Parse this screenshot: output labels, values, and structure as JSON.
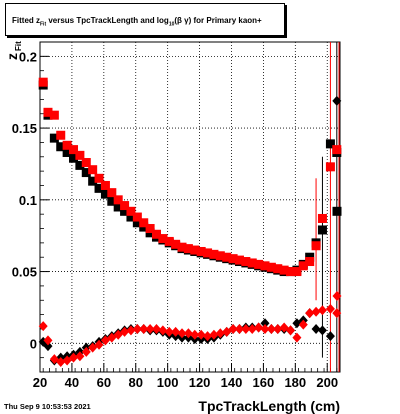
{
  "header": {
    "title": "Fitted  z",
    "title_sub": "Fit",
    "title_rest": "  versus TpcTrackLength and log",
    "title_sub2": "10",
    "title_tail": "(β  γ) for Primary kaon+"
  },
  "footer": {
    "timestamp": "Thu Sep  9 10:53:53 2021"
  },
  "chart_data": {
    "type": "scatter",
    "xlabel": "TpcTrackLength (cm)",
    "ylabel": "z",
    "ylabel_sub": "Fit",
    "xlim": [
      20,
      208
    ],
    "ylim": [
      -0.02,
      0.21
    ],
    "grid": true,
    "x_ticks": [
      20,
      40,
      60,
      80,
      100,
      120,
      140,
      160,
      180,
      200
    ],
    "y_ticks": [
      0,
      0.05,
      0.1,
      0.15,
      0.2
    ],
    "y_tick_labels": [
      "0",
      "0.05",
      "0.1",
      "0.15",
      "0.2"
    ],
    "series": [
      {
        "marker": "square",
        "color": "#000000",
        "points": [
          [
            22,
            0.18
          ],
          [
            25,
            0.159
          ],
          [
            29,
            0.143
          ],
          [
            33,
            0.137
          ],
          [
            37,
            0.133
          ],
          [
            41,
            0.129
          ],
          [
            45,
            0.124
          ],
          [
            49,
            0.119
          ],
          [
            53,
            0.113
          ],
          [
            57,
            0.108
          ],
          [
            61,
            0.104
          ],
          [
            65,
            0.099
          ],
          [
            69,
            0.095
          ],
          [
            73,
            0.092
          ],
          [
            77,
            0.088
          ],
          [
            81,
            0.084
          ],
          [
            85,
            0.081
          ],
          [
            89,
            0.077
          ],
          [
            93,
            0.074
          ],
          [
            97,
            0.072
          ],
          [
            101,
            0.07
          ],
          [
            105,
            0.068
          ],
          [
            109,
            0.066
          ],
          [
            113,
            0.065
          ],
          [
            117,
            0.064
          ],
          [
            121,
            0.063
          ],
          [
            125,
            0.062
          ],
          [
            129,
            0.061
          ],
          [
            133,
            0.06
          ],
          [
            137,
            0.059
          ],
          [
            141,
            0.058
          ],
          [
            145,
            0.057
          ],
          [
            149,
            0.056
          ],
          [
            153,
            0.055
          ],
          [
            157,
            0.054
          ],
          [
            161,
            0.053
          ],
          [
            165,
            0.052
          ],
          [
            169,
            0.051
          ],
          [
            173,
            0.05
          ],
          [
            177,
            0.05
          ],
          [
            181,
            0.051
          ],
          [
            185,
            0.055
          ],
          [
            189,
            0.06
          ],
          [
            193,
            0.07
          ],
          [
            197,
            0.079
          ],
          [
            202,
            0.139
          ],
          [
            206,
            0.133
          ],
          [
            209,
            0.092
          ]
        ]
      },
      {
        "marker": "square",
        "color": "#ff0000",
        "points": [
          [
            22,
            0.182
          ],
          [
            25,
            0.161
          ],
          [
            29,
            0.159
          ],
          [
            33,
            0.145
          ],
          [
            37,
            0.138
          ],
          [
            41,
            0.135
          ],
          [
            45,
            0.131
          ],
          [
            49,
            0.126
          ],
          [
            53,
            0.121
          ],
          [
            57,
            0.115
          ],
          [
            61,
            0.11
          ],
          [
            65,
            0.105
          ],
          [
            69,
            0.1
          ],
          [
            73,
            0.096
          ],
          [
            77,
            0.092
          ],
          [
            81,
            0.088
          ],
          [
            85,
            0.084
          ],
          [
            89,
            0.08
          ],
          [
            93,
            0.076
          ],
          [
            97,
            0.073
          ],
          [
            101,
            0.071
          ],
          [
            105,
            0.069
          ],
          [
            109,
            0.067
          ],
          [
            113,
            0.066
          ],
          [
            117,
            0.065
          ],
          [
            121,
            0.064
          ],
          [
            125,
            0.063
          ],
          [
            129,
            0.062
          ],
          [
            133,
            0.061
          ],
          [
            137,
            0.06
          ],
          [
            141,
            0.059
          ],
          [
            145,
            0.058
          ],
          [
            149,
            0.057
          ],
          [
            153,
            0.056
          ],
          [
            157,
            0.055
          ],
          [
            161,
            0.054
          ],
          [
            165,
            0.053
          ],
          [
            169,
            0.052
          ],
          [
            173,
            0.051
          ],
          [
            177,
            0.05
          ],
          [
            181,
            0.05
          ],
          [
            185,
            0.054
          ],
          [
            189,
            0.057
          ],
          [
            193,
            0.068
          ],
          [
            197,
            0.087
          ],
          [
            202,
            0.123
          ],
          [
            206,
            0.135
          ]
        ]
      },
      {
        "marker": "diamond",
        "color": "#000000",
        "points": [
          [
            22,
            0.001
          ],
          [
            25,
            -0.002
          ],
          [
            29,
            -0.012
          ],
          [
            33,
            -0.01
          ],
          [
            37,
            -0.009
          ],
          [
            41,
            -0.008
          ],
          [
            45,
            -0.006
          ],
          [
            49,
            -0.003
          ],
          [
            53,
            -0.002
          ],
          [
            57,
            0.001
          ],
          [
            61,
            0.003
          ],
          [
            65,
            0.005
          ],
          [
            69,
            0.007
          ],
          [
            73,
            0.009
          ],
          [
            77,
            0.01
          ],
          [
            81,
            0.01
          ],
          [
            85,
            0.01
          ],
          [
            89,
            0.009
          ],
          [
            93,
            0.009
          ],
          [
            97,
            0.008
          ],
          [
            101,
            0.006
          ],
          [
            105,
            0.005
          ],
          [
            109,
            0.004
          ],
          [
            113,
            0.004
          ],
          [
            117,
            0.003
          ],
          [
            121,
            0.003
          ],
          [
            125,
            0.003
          ],
          [
            129,
            0.004
          ],
          [
            133,
            0.006
          ],
          [
            137,
            0.008
          ],
          [
            141,
            0.01
          ],
          [
            145,
            0.01
          ],
          [
            149,
            0.011
          ],
          [
            153,
            0.011
          ],
          [
            157,
            0.011
          ],
          [
            161,
            0.014
          ],
          [
            165,
            0.01
          ],
          [
            169,
            0.01
          ],
          [
            173,
            0.01
          ],
          [
            177,
            0.009
          ],
          [
            181,
            0.014
          ],
          [
            185,
            0.016
          ],
          [
            189,
            0.021
          ],
          [
            193,
            0.01
          ],
          [
            197,
            0.009
          ],
          [
            202,
            0.005
          ],
          [
            206,
            0.169
          ]
        ]
      },
      {
        "marker": "diamond",
        "color": "#ff0000",
        "points": [
          [
            22,
            0.012
          ],
          [
            25,
            0.002
          ],
          [
            29,
            -0.011
          ],
          [
            33,
            -0.013
          ],
          [
            37,
            -0.012
          ],
          [
            41,
            -0.01
          ],
          [
            45,
            -0.009
          ],
          [
            49,
            -0.006
          ],
          [
            53,
            -0.003
          ],
          [
            57,
            -0.001
          ],
          [
            61,
            0.002
          ],
          [
            65,
            0.004
          ],
          [
            69,
            0.006
          ],
          [
            73,
            0.008
          ],
          [
            77,
            0.009
          ],
          [
            81,
            0.01
          ],
          [
            85,
            0.01
          ],
          [
            89,
            0.01
          ],
          [
            93,
            0.01
          ],
          [
            97,
            0.009
          ],
          [
            101,
            0.008
          ],
          [
            105,
            0.008
          ],
          [
            109,
            0.007
          ],
          [
            113,
            0.007
          ],
          [
            117,
            0.006
          ],
          [
            121,
            0.006
          ],
          [
            125,
            0.005
          ],
          [
            129,
            0.006
          ],
          [
            133,
            0.007
          ],
          [
            137,
            0.008
          ],
          [
            141,
            0.01
          ],
          [
            145,
            0.01
          ],
          [
            149,
            0.01
          ],
          [
            153,
            0.01
          ],
          [
            157,
            0.011
          ],
          [
            161,
            0.01
          ],
          [
            165,
            0.01
          ],
          [
            169,
            0.01
          ],
          [
            173,
            0.011
          ],
          [
            177,
            0.009
          ],
          [
            181,
            0.004
          ],
          [
            185,
            0.013
          ],
          [
            189,
            0.021
          ],
          [
            193,
            0.022
          ],
          [
            197,
            0.023
          ],
          [
            202,
            0.024
          ],
          [
            206,
            0.021
          ],
          [
            209,
            0.033
          ]
        ]
      }
    ],
    "error_bars": [
      {
        "x": 193,
        "y": 0.079,
        "low": 0.03,
        "high": 0.115,
        "color": "#ff0000"
      },
      {
        "x": 197,
        "y": 0.087,
        "low": -0.01,
        "high": 0.13,
        "color": "#000000"
      },
      {
        "x": 202,
        "y": 0.024,
        "low": -0.02,
        "high": 0.21,
        "color": "#ff0000"
      },
      {
        "x": 206,
        "y": 0.169,
        "low": -0.02,
        "high": 0.21,
        "color": "#000000"
      },
      {
        "x": 209,
        "y": 0.092,
        "low": -0.02,
        "high": 0.21,
        "color": "#ff0000"
      }
    ]
  }
}
